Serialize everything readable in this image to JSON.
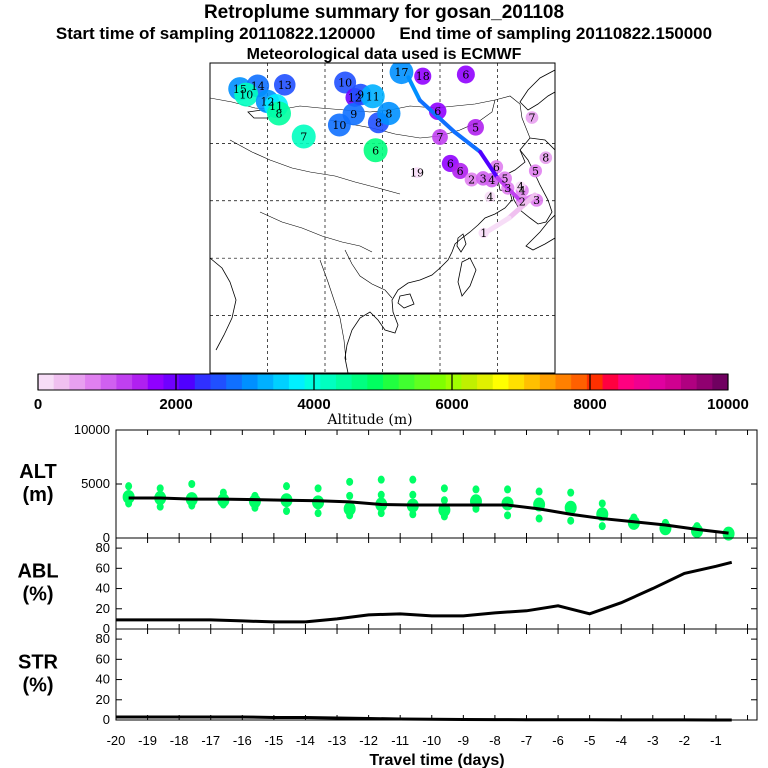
{
  "titles": {
    "line1": "Retroplume summary for gosan_201108",
    "line2_start": "Start time of sampling 20110822.120000",
    "line2_end": "End time of sampling 20110822.150000",
    "line3": "Meteorological data used is ECMWF"
  },
  "colorbar": {
    "label": "Altitude (m)",
    "tick_labels": [
      "0",
      "2000",
      "4000",
      "6000",
      "8000",
      "10000"
    ],
    "min": 0,
    "max": 10000,
    "colors": [
      "#f7ddf7",
      "#f0c0f0",
      "#e8a0f0",
      "#e080f0",
      "#d060f0",
      "#c040f0",
      "#b020f0",
      "#9000ff",
      "#7000ff",
      "#5000ff",
      "#3030ff",
      "#2050ff",
      "#1070ff",
      "#0090ff",
      "#00b0ff",
      "#00d0ff",
      "#00f0ff",
      "#00ffe0",
      "#00ffc0",
      "#00ffa0",
      "#00ff80",
      "#00ff60",
      "#20ff40",
      "#40ff30",
      "#60ff20",
      "#80ff00",
      "#a0ff00",
      "#c0f000",
      "#e0f000",
      "#ffff00",
      "#ffe000",
      "#ffc000",
      "#ffa000",
      "#ff8000",
      "#ff6000",
      "#ff3000",
      "#ff0040",
      "#ff0080",
      "#f00090",
      "#e000a0",
      "#d00090",
      "#b00080",
      "#900070",
      "#700060"
    ]
  },
  "axes": {
    "xlabel": "Travel time (days)",
    "x_tick_labels": [
      "-20",
      "-19",
      "-18",
      "-17",
      "-16",
      "-15",
      "-14",
      "-13",
      "-12",
      "-11",
      "-10",
      "-9",
      "-8",
      "-7",
      "-6",
      "-5",
      "-4",
      "-3",
      "-2",
      "-1"
    ]
  },
  "chart_data": [
    {
      "type": "scatter",
      "name": "ALT",
      "ylabel_line1": "ALT",
      "ylabel_line2": "(m)",
      "ylim": [
        0,
        10000
      ],
      "y_tick_labels": [
        "0",
        "5000",
        "10000"
      ],
      "x": [
        -19.6,
        -18.6,
        -17.6,
        -16.6,
        -15.6,
        -14.6,
        -13.6,
        -12.6,
        -11.6,
        -10.6,
        -9.6,
        -8.6,
        -7.6,
        -6.6,
        -5.6,
        -4.6,
        -3.6,
        -2.6,
        -1.6,
        -0.6
      ],
      "median": [
        3700,
        3700,
        3600,
        3600,
        3550,
        3500,
        3450,
        3350,
        3100,
        3050,
        3050,
        3050,
        3050,
        2700,
        2200,
        1800,
        1500,
        1200,
        800,
        450
      ],
      "points": [
        {
          "x": -19.6,
          "y": [
            4800,
            3800,
            3200
          ]
        },
        {
          "x": -18.6,
          "y": [
            4600,
            3700,
            2900
          ]
        },
        {
          "x": -17.6,
          "y": [
            5000,
            3600,
            3000
          ]
        },
        {
          "x": -16.6,
          "y": [
            4200,
            3500,
            3100
          ]
        },
        {
          "x": -15.6,
          "y": [
            3900,
            3400,
            2800
          ]
        },
        {
          "x": -14.6,
          "y": [
            4800,
            3500,
            2500
          ]
        },
        {
          "x": -13.6,
          "y": [
            4600,
            3300,
            2300
          ]
        },
        {
          "x": -12.6,
          "y": [
            5200,
            3900,
            2700,
            2100
          ]
        },
        {
          "x": -11.6,
          "y": [
            5400,
            4000,
            3100,
            2300
          ]
        },
        {
          "x": -10.6,
          "y": [
            5400,
            4000,
            3000,
            2200
          ]
        },
        {
          "x": -9.6,
          "y": [
            4600,
            3500,
            2600,
            2000
          ]
        },
        {
          "x": -8.6,
          "y": [
            4500,
            3400,
            2700
          ]
        },
        {
          "x": -7.6,
          "y": [
            4500,
            3200,
            2100
          ]
        },
        {
          "x": -6.6,
          "y": [
            4300,
            3100,
            1800
          ]
        },
        {
          "x": -5.6,
          "y": [
            4200,
            2800,
            1600
          ]
        },
        {
          "x": -4.6,
          "y": [
            3200,
            2200,
            1100
          ]
        },
        {
          "x": -3.6,
          "y": [
            1900,
            1400
          ]
        },
        {
          "x": -2.6,
          "y": [
            1400,
            900
          ]
        },
        {
          "x": -1.6,
          "y": [
            1100,
            650
          ]
        },
        {
          "x": -0.6,
          "y": [
            400
          ]
        }
      ]
    },
    {
      "type": "line",
      "name": "ABL",
      "ylabel_line1": "ABL",
      "ylabel_line2": "(%)",
      "ylim": [
        0,
        90
      ],
      "y_tick_labels": [
        "0",
        "20",
        "40",
        "60",
        "80"
      ],
      "x": [
        -20,
        -19,
        -18,
        -17,
        -16,
        -15,
        -14,
        -13,
        -12,
        -11,
        -10,
        -9,
        -8,
        -7,
        -6,
        -5,
        -4,
        -3,
        -2,
        -1,
        -0.5
      ],
      "y": [
        9,
        9,
        9,
        9,
        8,
        7,
        7,
        10,
        14,
        15,
        13,
        13,
        16,
        18,
        23,
        15,
        26,
        40,
        55,
        62,
        66
      ]
    },
    {
      "type": "line",
      "name": "STR",
      "ylabel_line1": "STR",
      "ylabel_line2": "(%)",
      "ylim": [
        0,
        90
      ],
      "y_tick_labels": [
        "0",
        "20",
        "40",
        "60",
        "80"
      ],
      "x": [
        -20,
        -19,
        -18,
        -17,
        -16,
        -15,
        -14,
        -13,
        -12,
        -11,
        -10,
        -9,
        -8,
        -7,
        -6,
        -5,
        -4,
        -3,
        -2,
        -1,
        -0.5
      ],
      "y": [
        3,
        3,
        3,
        3,
        3,
        2.5,
        2.5,
        2,
        1.5,
        1,
        0.8,
        0.5,
        0.4,
        0.3,
        0.2,
        0.2,
        0.1,
        0.1,
        0.1,
        0,
        0
      ]
    }
  ],
  "map": {
    "track_points": [
      {
        "label": "15",
        "lon": 75.2,
        "lat": 49.5,
        "alt": 3000
      },
      {
        "label": "14",
        "lon": 78.3,
        "lat": 50,
        "alt": 2900
      },
      {
        "label": "13",
        "lon": 83,
        "lat": 50.2,
        "alt": 2600
      },
      {
        "label": "10",
        "lon": 76.3,
        "lat": 48.5,
        "alt": 4200
      },
      {
        "label": "12",
        "lon": 80,
        "lat": 47.3,
        "alt": 3000
      },
      {
        "label": "11",
        "lon": 81.5,
        "lat": 46.5,
        "alt": 3800
      },
      {
        "label": "8",
        "lon": 82,
        "lat": 45.2,
        "alt": 4500
      },
      {
        "label": "7",
        "lon": 86.3,
        "lat": 41.2,
        "alt": 4300
      },
      {
        "label": "10",
        "lon": 93.5,
        "lat": 50.6,
        "alt": 2700
      },
      {
        "label": "12",
        "lon": 95.2,
        "lat": 48,
        "alt": 2000
      },
      {
        "label": "10",
        "lon": 92.5,
        "lat": 43.2,
        "alt": 2900
      },
      {
        "label": "9",
        "lon": 95,
        "lat": 45.1,
        "alt": 2800
      },
      {
        "label": "9",
        "lon": 96.2,
        "lat": 48.5,
        "alt": 2600
      },
      {
        "label": "11",
        "lon": 98.3,
        "lat": 48.2,
        "alt": 3200
      },
      {
        "label": "8",
        "lon": 99.3,
        "lat": 43.6,
        "alt": 2500
      },
      {
        "label": "8",
        "lon": 101.1,
        "lat": 45.2,
        "alt": 3000
      },
      {
        "label": "6",
        "lon": 98.8,
        "lat": 38.8,
        "alt": 4600
      },
      {
        "label": "17",
        "lon": 103.3,
        "lat": 52.4,
        "alt": 3100
      },
      {
        "label": "18",
        "lon": 107,
        "lat": 51.7,
        "alt": 1600
      },
      {
        "label": "6",
        "lon": 114.5,
        "lat": 52,
        "alt": 1800
      },
      {
        "label": "6",
        "lon": 109.6,
        "lat": 45.6,
        "alt": 1700
      },
      {
        "label": "5",
        "lon": 116.2,
        "lat": 42.8,
        "alt": 1500
      },
      {
        "label": "7",
        "lon": 110,
        "lat": 41.1,
        "alt": 1300
      },
      {
        "label": "6",
        "lon": 111.8,
        "lat": 36.5,
        "alt": 1600
      },
      {
        "label": "6",
        "lon": 113.5,
        "lat": 35.2,
        "alt": 1400
      },
      {
        "label": "2",
        "lon": 115.5,
        "lat": 33.7,
        "alt": 900
      },
      {
        "label": "3",
        "lon": 117.5,
        "lat": 33.9,
        "alt": 1000
      },
      {
        "label": "4",
        "lon": 119,
        "lat": 33.6,
        "alt": 1000
      },
      {
        "label": "5",
        "lon": 121.3,
        "lat": 33.9,
        "alt": 900
      },
      {
        "label": "6",
        "lon": 119.8,
        "lat": 35.9,
        "alt": 800
      },
      {
        "label": "3",
        "lon": 121.8,
        "lat": 32.2,
        "alt": 700
      },
      {
        "label": "4",
        "lon": 124.3,
        "lat": 31.8,
        "alt": 700
      },
      {
        "label": "2",
        "lon": 124.3,
        "lat": 29.9,
        "alt": 600
      },
      {
        "label": "3",
        "lon": 126.8,
        "lat": 30.1,
        "alt": 700
      },
      {
        "label": "7",
        "lon": 126,
        "lat": 44.5,
        "alt": 600
      },
      {
        "label": "8",
        "lon": 128.4,
        "lat": 37.5,
        "alt": 600
      },
      {
        "label": "5",
        "lon": 126.6,
        "lat": 35.2,
        "alt": 700
      },
      {
        "label": "19",
        "lon": 106,
        "lat": 34.9,
        "alt": 200
      },
      {
        "label": "4",
        "lon": 118.7,
        "lat": 30.7,
        "alt": 200
      },
      {
        "label": "4",
        "lon": 124,
        "lat": 32.5,
        "alt": 100
      },
      {
        "label": "1",
        "lon": 117.6,
        "lat": 24.4,
        "alt": 100
      }
    ],
    "mean_path": [
      {
        "lon": 104.5,
        "lat": 51.5,
        "alt": 3000
      },
      {
        "lon": 106.5,
        "lat": 47.5,
        "alt": 3000
      },
      {
        "lon": 112.5,
        "lat": 42,
        "alt": 2800
      },
      {
        "lon": 117,
        "lat": 38.5,
        "alt": 2700
      },
      {
        "lon": 120,
        "lat": 34,
        "alt": 1600
      },
      {
        "lon": 124,
        "lat": 30,
        "alt": 1000
      },
      {
        "lon": 126.5,
        "lat": 31,
        "alt": 600
      }
    ],
    "highlight_path": [
      {
        "lon": 126.5,
        "lat": 31,
        "alt": 500
      },
      {
        "lon": 122,
        "lat": 27,
        "alt": 300
      },
      {
        "lon": 118,
        "lat": 24.5,
        "alt": 100
      }
    ]
  }
}
